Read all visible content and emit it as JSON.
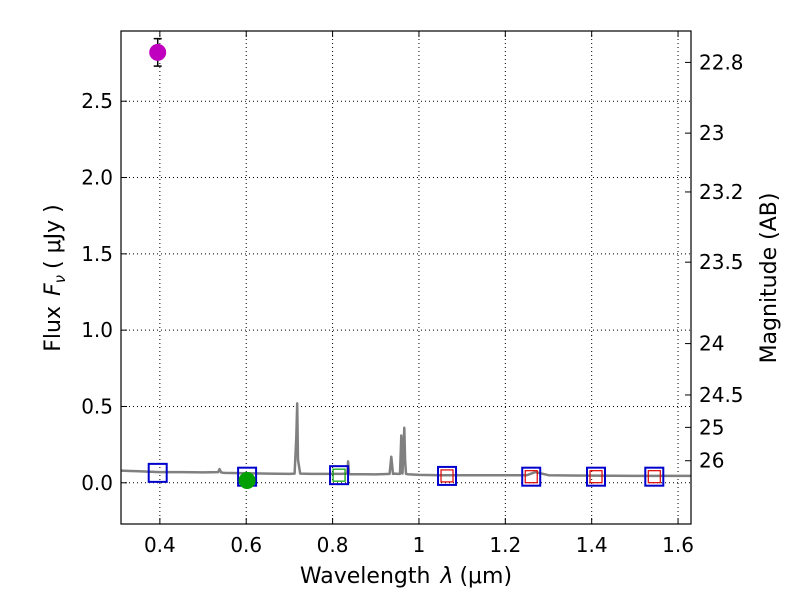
{
  "chart_data": {
    "type": "scatter",
    "xlabel_text": "Wavelength",
    "xlabel_symbol": "λ",
    "xlabel_unit": "(μm)",
    "ylabel_text": "Flux",
    "ylabel_symbol": "F",
    "ylabel_subscript": "ν",
    "ylabel_unit": "( μJy )",
    "y2label": "Magnitude (AB)",
    "xlim": [
      0.31,
      1.63
    ],
    "ylim": [
      -0.27,
      2.96
    ],
    "grid": true,
    "xticks": [
      {
        "value": 0.4,
        "label": "0.4"
      },
      {
        "value": 0.6,
        "label": "0.6"
      },
      {
        "value": 0.8,
        "label": "0.8"
      },
      {
        "value": 1.0,
        "label": "1"
      },
      {
        "value": 1.2,
        "label": "1.2"
      },
      {
        "value": 1.4,
        "label": "1.4"
      },
      {
        "value": 1.6,
        "label": "1.6"
      }
    ],
    "yticks": [
      {
        "value": 0.0,
        "label": "0.0"
      },
      {
        "value": 0.5,
        "label": "0.5"
      },
      {
        "value": 1.0,
        "label": "1.0"
      },
      {
        "value": 1.5,
        "label": "1.5"
      },
      {
        "value": 2.0,
        "label": "2.0"
      },
      {
        "value": 2.5,
        "label": "2.5"
      }
    ],
    "y2ticks": [
      {
        "magnitude": 22.8,
        "label": "22.8"
      },
      {
        "magnitude": 23,
        "label": "23"
      },
      {
        "magnitude": 23.2,
        "label": "23.2"
      },
      {
        "magnitude": 23.5,
        "label": "23.5"
      },
      {
        "magnitude": 24,
        "label": "24"
      },
      {
        "magnitude": 24.5,
        "label": "24.5"
      },
      {
        "magnitude": 25,
        "label": "25"
      },
      {
        "magnitude": 26,
        "label": "26"
      }
    ],
    "model_spectrum": {
      "name": "model SED",
      "color": "#808080",
      "x": [
        0.31,
        0.35,
        0.4,
        0.45,
        0.5,
        0.535,
        0.538,
        0.542,
        0.546,
        0.55,
        0.6,
        0.65,
        0.7,
        0.712,
        0.716,
        0.718,
        0.72,
        0.725,
        0.75,
        0.78,
        0.8,
        0.82,
        0.834,
        0.836,
        0.838,
        0.84,
        0.87,
        0.9,
        0.932,
        0.936,
        0.94,
        0.944,
        0.95,
        0.956,
        0.959,
        0.962,
        0.964,
        0.966,
        0.968,
        0.97,
        0.974,
        1.0,
        1.05,
        1.1,
        1.15,
        1.2,
        1.25,
        1.27,
        1.3,
        1.35,
        1.4,
        1.45,
        1.5,
        1.55,
        1.6,
        1.63
      ],
      "y": [
        0.08,
        0.075,
        0.07,
        0.07,
        0.068,
        0.07,
        0.09,
        0.068,
        0.066,
        0.065,
        0.062,
        0.06,
        0.058,
        0.06,
        0.3,
        0.52,
        0.15,
        0.06,
        0.058,
        0.058,
        0.058,
        0.058,
        0.06,
        0.14,
        0.06,
        0.056,
        0.056,
        0.055,
        0.058,
        0.17,
        0.058,
        0.06,
        0.058,
        0.058,
        0.31,
        0.06,
        0.2,
        0.36,
        0.15,
        0.058,
        0.056,
        0.052,
        0.05,
        0.05,
        0.05,
        0.05,
        0.05,
        0.07,
        0.05,
        0.048,
        0.047,
        0.046,
        0.045,
        0.045,
        0.045,
        0.045
      ]
    },
    "observed_photometry": [
      {
        "name": "observed blue",
        "x": 0.395,
        "y": 2.82,
        "yerr": 0.09,
        "color": "#bf00bf"
      },
      {
        "name": "observed green",
        "x": 0.602,
        "y": 0.015,
        "yerr": 0.02,
        "color": "#00a000"
      }
    ],
    "model_photometry": {
      "name": "model bands",
      "color": "#0000cc",
      "points": [
        {
          "x": 0.395,
          "y": 0.065
        },
        {
          "x": 0.602,
          "y": 0.04
        },
        {
          "x": 0.815,
          "y": 0.05
        },
        {
          "x": 1.065,
          "y": 0.045
        },
        {
          "x": 1.26,
          "y": 0.04
        },
        {
          "x": 1.41,
          "y": 0.04
        },
        {
          "x": 1.545,
          "y": 0.04
        }
      ]
    },
    "upper_limits": {
      "name": "limits",
      "points": [
        {
          "x": 0.815,
          "y": 0.05,
          "color": "#00a000"
        },
        {
          "x": 1.065,
          "y": 0.045,
          "color": "#e00000"
        },
        {
          "x": 1.26,
          "y": 0.04,
          "color": "#e00000"
        },
        {
          "x": 1.41,
          "y": 0.04,
          "color": "#e00000"
        },
        {
          "x": 1.545,
          "y": 0.04,
          "color": "#e00000"
        }
      ]
    }
  }
}
